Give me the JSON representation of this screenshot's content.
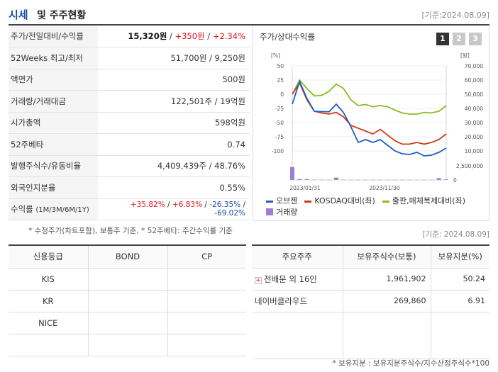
{
  "header": {
    "title_main": "시세",
    "title_rest": "및 주주현황",
    "date": "[기준:2024.08.09]"
  },
  "quote": {
    "price_label": "주가/전일대비/수익률",
    "price": "15,320원",
    "change": "+350원",
    "change_pct": "+2.34%",
    "week52_label": "52Weeks 최고/최저",
    "week52": "51,700원 / 9,250원",
    "par_label": "액면가",
    "par": "500원",
    "volume_label": "거래량/거래대금",
    "volume": "122,501주 / 19억원",
    "mcap_label": "시가총액",
    "mcap": "598억원",
    "beta_label": "52주베타",
    "beta": "0.74",
    "shares_label": "발행주식수/유동비율",
    "shares": "4,409,439주 / 48.76%",
    "foreign_label": "외국인지분율",
    "foreign": "0.55%",
    "return_label": "수익률",
    "return_sub": "(1M/3M/6M/1Y)",
    "r1": "+35.82%",
    "r3": "+6.83%",
    "r6": "-26.35%",
    "r12": "-69.02%",
    "sep": " / "
  },
  "note1": "* 수정주가(차트포함), 보통주 기준, * 52주베타: 주간수익률 기준",
  "chart": {
    "title": "주가/상대수익률",
    "tabs": [
      "1",
      "2",
      "3"
    ],
    "legend": [
      {
        "name": "오브젠",
        "color": "#1f5fbf"
      },
      {
        "name": "KOSDAQ대비(좌)",
        "color": "#d0391d"
      },
      {
        "name": "출판,매체복제대비(좌)",
        "color": "#8dbb1f"
      },
      {
        "name": "거래량",
        "color": "#9b7fd4"
      }
    ],
    "left_unit": "[%]",
    "right_unit": "[원]",
    "left_ticks": [
      "50",
      "25",
      "0",
      "-25",
      "-50",
      "-75",
      "-100"
    ],
    "right_ticks": [
      "70,000",
      "60,000",
      "50,000",
      "40,000",
      "30,000",
      "20,000",
      "10,000"
    ],
    "vol_tick": "2,500,000",
    "vol_zero": "0",
    "x_labels": [
      "2023/01/31",
      "2023/11/30"
    ]
  },
  "chart_data": {
    "type": "line",
    "x": [
      0,
      1,
      2,
      3,
      4,
      5,
      6,
      7,
      8,
      9,
      10,
      11,
      12,
      13,
      14,
      15,
      16,
      17,
      18,
      19,
      20,
      21
    ],
    "series": [
      {
        "name": "오브젠",
        "axis": "right",
        "values": [
          43000,
          59000,
          47000,
          38000,
          37800,
          37600,
          43000,
          37000,
          27000,
          16000,
          18000,
          16000,
          18000,
          14000,
          10000,
          8000,
          7500,
          9000,
          6500,
          7000,
          9000,
          12000
        ]
      },
      {
        "name": "KOSDAQ대비(좌)",
        "axis": "left",
        "values": [
          0,
          20,
          -10,
          -30,
          -33,
          -35,
          -32,
          -40,
          -55,
          -60,
          -65,
          -70,
          -62,
          -72,
          -82,
          -88,
          -88,
          -85,
          -88,
          -85,
          -80,
          -70
        ]
      },
      {
        "name": "출판,매체복제대비(좌)",
        "axis": "left",
        "values": [
          0,
          25,
          10,
          -3,
          -2,
          5,
          18,
          10,
          -10,
          -20,
          -18,
          -22,
          -20,
          -22,
          -28,
          -33,
          -35,
          -35,
          -32,
          -33,
          -30,
          -20
        ]
      }
    ],
    "volume": {
      "name": "거래량",
      "values": [
        2300000,
        160000,
        150000,
        50000,
        40000,
        30000,
        420000,
        50000,
        30000,
        30000,
        40000,
        30000,
        30000,
        30000,
        30000,
        30000,
        30000,
        30000,
        30000,
        30000,
        320000,
        100000
      ]
    },
    "ylim_left": [
      -100,
      50
    ],
    "ylim_right": [
      10000,
      70000
    ],
    "ylim_volume": [
      0,
      2500000
    ]
  },
  "date2": "[기준: 2024.08.09]",
  "credit": {
    "headers": [
      "신용등급",
      "BOND",
      "CP"
    ],
    "rows": [
      [
        "KIS",
        "",
        ""
      ],
      [
        "KR",
        "",
        ""
      ],
      [
        "NICE",
        "",
        ""
      ],
      [
        "",
        "",
        ""
      ]
    ]
  },
  "holders": {
    "headers": [
      "주요주주",
      "보유주식수(보통)",
      "보유지분(%)"
    ],
    "rows": [
      {
        "name": "전배문 외 16인",
        "shares": "1,961,902",
        "pct": "50.24",
        "expand": "+"
      },
      {
        "name": "네이버클라우드",
        "shares": "269,860",
        "pct": "6.91"
      }
    ]
  },
  "note2": "* 보유지분 : 보유지분주식수/지수산정주식수*100"
}
